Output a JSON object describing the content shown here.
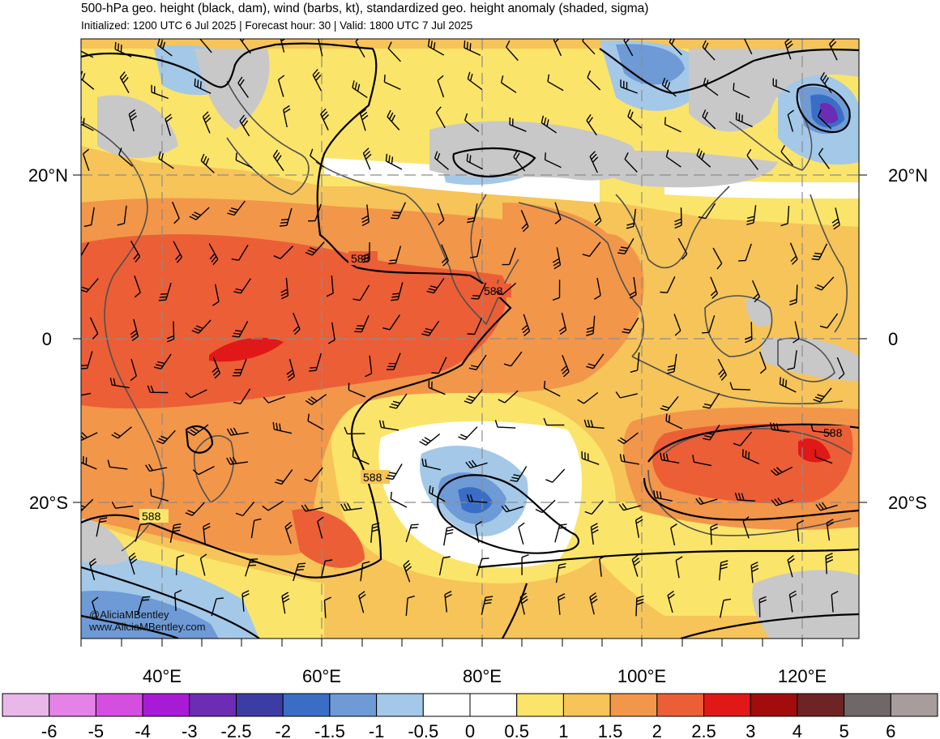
{
  "header": {
    "title": "500-hPa geo. height (black, dam), wind (barbs, kt), standardized geo. height anomaly (shaded, sigma)",
    "subtitle": "Initialized: 1200 UTC 6 Jul 2025 | Forecast hour: 30 | Valid: 1800 UTC 7 Jul 2025"
  },
  "map": {
    "lat_labels_left": [
      "20°N",
      "0",
      "20°S"
    ],
    "lat_labels_right": [
      "20°N",
      "0",
      "20°S"
    ],
    "lon_labels": [
      "40°E",
      "60°E",
      "80°E",
      "100°E",
      "120°E"
    ],
    "contour_labels": [
      "588",
      "588",
      "588",
      "588",
      "588"
    ],
    "gridlines": true
  },
  "credits": {
    "line1": "@AliciaMBentley",
    "line2": "www.AliciaMBentley.com"
  },
  "colorbar": {
    "labels": [
      "-6",
      "-5",
      "-4",
      "-3",
      "-2.5",
      "-2",
      "-1.5",
      "-1",
      "-0.5",
      "0",
      "0.5",
      "1",
      "1.5",
      "2",
      "2.5",
      "3",
      "4",
      "5",
      "6"
    ],
    "colors": [
      "#e8b8e8",
      "#e482e8",
      "#d64ee0",
      "#a81ad6",
      "#6c2cb4",
      "#3c3ca4",
      "#3a6ec6",
      "#6e9ad6",
      "#a4c8e8",
      "#ffffff",
      "#ffffff",
      "#fbe46a",
      "#f6c458",
      "#f2964a",
      "#ec5e36",
      "#e01818",
      "#a20c0c",
      "#6e2424",
      "#706868",
      "#a89c9c"
    ]
  }
}
